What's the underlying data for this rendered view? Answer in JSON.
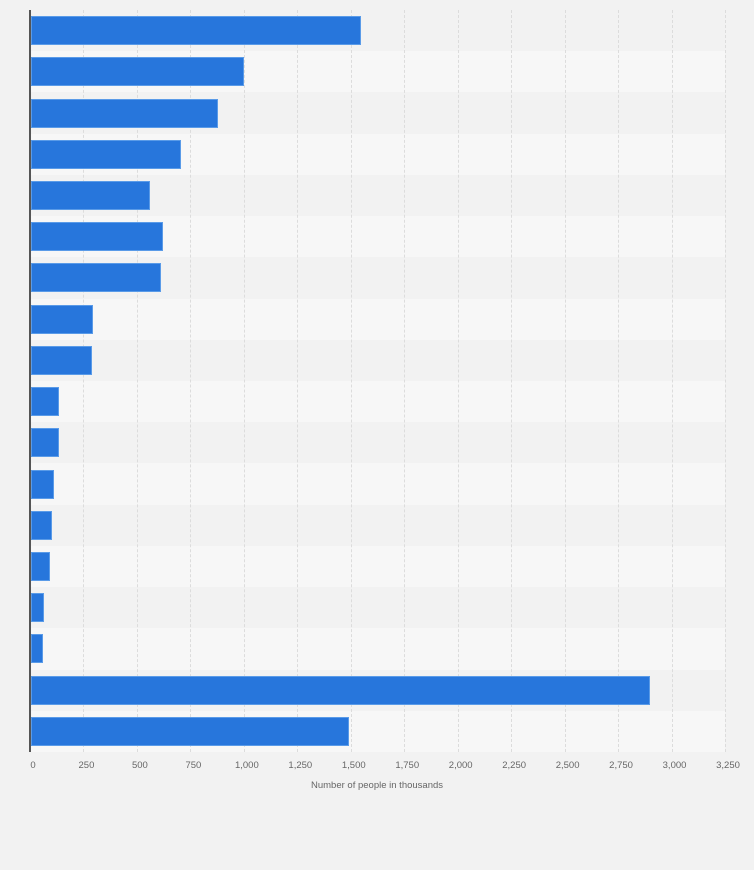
{
  "chart_data": {
    "type": "bar",
    "orientation": "horizontal",
    "title": "",
    "xlabel": "Number of people in thousands",
    "ylabel": "",
    "xlim": [
      0,
      3250
    ],
    "x_ticks": [
      "0",
      "250",
      "500",
      "750",
      "1,000",
      "1,250",
      "1,500",
      "1,750",
      "2,000",
      "2,250",
      "2,500",
      "2,750",
      "3,000",
      "3,250"
    ],
    "grid": true,
    "legend": null,
    "categories": [
      "",
      "",
      "",
      "",
      "",
      "",
      "",
      "",
      "",
      "",
      "",
      "",
      "",
      "",
      "",
      "",
      "",
      ""
    ],
    "values": [
      1550,
      1000,
      880,
      705,
      562,
      622,
      613,
      294,
      290,
      136,
      136,
      112,
      103,
      94,
      65,
      61,
      2900,
      1490
    ],
    "bar_color": "#2776dc"
  },
  "axis": {
    "x_title": "Number of people in thousands"
  }
}
